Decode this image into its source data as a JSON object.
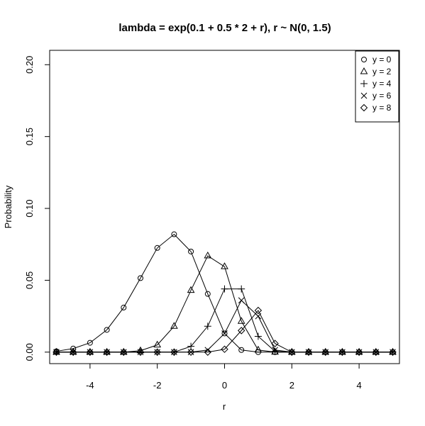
{
  "chart_data": {
    "type": "line",
    "title": "lambda  = exp(0.1 + 0.5 * 2 +  r), r ~ N(0, 1.5)",
    "xlabel": "r",
    "ylabel": "Probability",
    "xlim": [
      -5.2,
      5.2
    ],
    "ylim": [
      -0.008,
      0.21
    ],
    "x_ticks": [
      -4,
      -2,
      0,
      2,
      4
    ],
    "x_tick_labels": [
      "-4",
      "-2",
      "0",
      "2",
      "4"
    ],
    "y_ticks": [
      0.0,
      0.05,
      0.1,
      0.15,
      0.2
    ],
    "y_tick_labels": [
      "0.00",
      "0.05",
      "0.10",
      "0.15",
      "0.20"
    ],
    "grid": false,
    "legend_position": "top-right",
    "x": [
      -5,
      -4.5,
      -4,
      -3.5,
      -3,
      -2.5,
      -2,
      -1.5,
      -1,
      -0.5,
      0,
      0.5,
      1,
      1.5,
      2,
      2.5,
      3,
      3.5,
      4,
      4.5,
      5
    ],
    "series": [
      {
        "name": "y = 0",
        "marker": "circle",
        "values": [
          0.0006,
          0.0025,
          0.0065,
          0.0155,
          0.031,
          0.0515,
          0.0725,
          0.082,
          0.07,
          0.0405,
          0.013,
          0.0015,
          0.0,
          0,
          0,
          0,
          0,
          0,
          0,
          0,
          0
        ]
      },
      {
        "name": "y = 2",
        "marker": "triangle",
        "values": [
          0,
          0,
          0,
          0,
          0,
          0.001,
          0.005,
          0.018,
          0.043,
          0.067,
          0.0595,
          0.0215,
          0.0015,
          0,
          0,
          0,
          0,
          0,
          0,
          0,
          0
        ]
      },
      {
        "name": "y = 4",
        "marker": "plus",
        "values": [
          0,
          0,
          0,
          0,
          0,
          0,
          0,
          0,
          0.004,
          0.018,
          0.044,
          0.044,
          0.011,
          0.0005,
          0,
          0,
          0,
          0,
          0,
          0,
          0
        ]
      },
      {
        "name": "y = 6",
        "marker": "cross",
        "values": [
          0,
          0,
          0,
          0,
          0,
          0,
          0,
          0,
          0,
          0.0015,
          0.013,
          0.036,
          0.025,
          0.0015,
          0,
          0,
          0,
          0,
          0,
          0,
          0
        ]
      },
      {
        "name": "y = 8",
        "marker": "diamond",
        "values": [
          0,
          0,
          0,
          0,
          0,
          0,
          0,
          0,
          0,
          0,
          0.002,
          0.015,
          0.029,
          0.006,
          0,
          0,
          0,
          0,
          0,
          0,
          0
        ]
      }
    ]
  }
}
